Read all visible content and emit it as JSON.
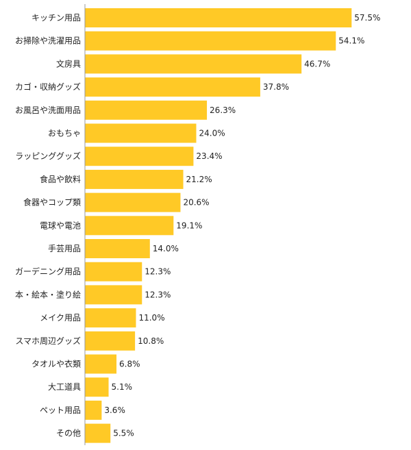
{
  "chart_data": {
    "type": "bar",
    "orientation": "horizontal",
    "categories": [
      "キッチン用品",
      "お掃除や洗濯用品",
      "文房具",
      "カゴ・収納グッズ",
      "お風呂や洗面用品",
      "おもちゃ",
      "ラッピンググッズ",
      "食品や飲料",
      "食器やコップ類",
      "電球や電池",
      "手芸用品",
      "ガーデニング用品",
      "本・絵本・塗り絵",
      "メイク用品",
      "スマホ周辺グッズ",
      "タオルや衣類",
      "大工道具",
      "ペット用品",
      "その他"
    ],
    "values": [
      57.5,
      54.1,
      46.7,
      37.8,
      26.3,
      24.0,
      23.4,
      21.2,
      20.6,
      19.1,
      14.0,
      12.3,
      12.3,
      11.0,
      10.8,
      6.8,
      5.1,
      3.6,
      5.5
    ],
    "value_labels": [
      "57.5%",
      "54.1%",
      "46.7%",
      "37.8%",
      "26.3%",
      "24.0%",
      "23.4%",
      "21.2%",
      "20.6%",
      "19.1%",
      "14.0%",
      "12.3%",
      "12.3%",
      "11.0%",
      "10.8%",
      "6.8%",
      "5.1%",
      "3.6%",
      "5.5%"
    ],
    "xlim": [
      0,
      64.4
    ],
    "bar_color": "#FFC926",
    "axis_color": "#999999",
    "grid": false,
    "legend": "none"
  }
}
